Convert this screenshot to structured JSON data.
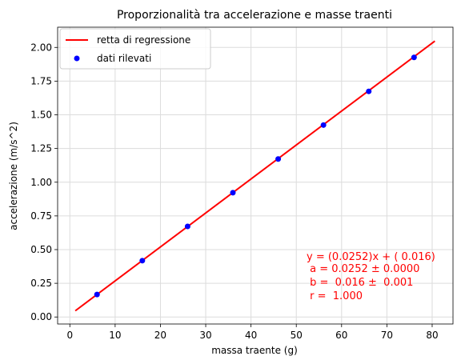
{
  "chart_data": {
    "type": "scatter",
    "title": "Proporzionalità tra accelerazione e masse traenti",
    "xlabel": "massa traente (g)",
    "ylabel": "accelerazione (m/s^2)",
    "xlim": [
      -2.7,
      84.6
    ],
    "ylim": [
      -0.052,
      2.15
    ],
    "x_ticks": [
      0,
      10,
      20,
      30,
      40,
      50,
      60,
      70,
      80
    ],
    "y_ticks": [
      0.0,
      0.25,
      0.5,
      0.75,
      1.0,
      1.25,
      1.5,
      1.75,
      2.0
    ],
    "x_tick_labels": [
      "0",
      "10",
      "20",
      "30",
      "40",
      "50",
      "60",
      "70",
      "80"
    ],
    "y_tick_labels": [
      "0.00",
      "0.25",
      "0.50",
      "0.75",
      "1.00",
      "1.25",
      "1.50",
      "1.75",
      "2.00"
    ],
    "grid": true,
    "legend_position": "top-left",
    "series": [
      {
        "name": "retta di regressione",
        "kind": "line",
        "color": "#ff0000",
        "x": [
          1.2,
          80.6
        ],
        "y": [
          0.046,
          2.047
        ]
      },
      {
        "name": "dati rilevati",
        "kind": "scatter",
        "color": "#0000ff",
        "x": [
          6,
          16,
          26,
          36,
          46,
          56,
          66,
          76
        ],
        "y": [
          0.167,
          0.418,
          0.672,
          0.922,
          1.172,
          1.424,
          1.674,
          1.926
        ]
      }
    ],
    "annotation": {
      "color": "#ff0000",
      "lines": [
        "y = (0.0252)x + ( 0.016)",
        " a = 0.0252 ± 0.0000",
        " b =  0.016 ±  0.001",
        " r =  1.000"
      ]
    }
  }
}
